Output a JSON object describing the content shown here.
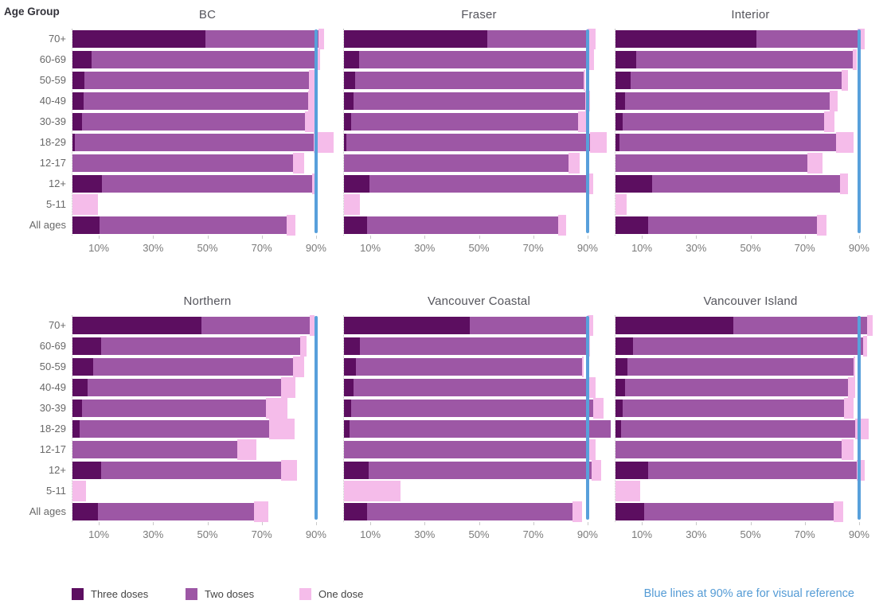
{
  "header": {
    "age_group_label": "Age Group"
  },
  "legend": {
    "items": [
      {
        "label": "Three doses",
        "key": "three"
      },
      {
        "label": "Two doses",
        "key": "two"
      },
      {
        "label": "One dose",
        "key": "one"
      }
    ]
  },
  "note": {
    "text": "Blue lines at 90% are for visual reference"
  },
  "colors": {
    "three": "#5c0e60",
    "two": "#9d57a5",
    "one": "#f5bcea",
    "reference_blue": "#58a0db",
    "note_blue": "#549bd5"
  },
  "chart_data": {
    "type": "bar",
    "subtype": "horizontal-stacked-small-multiples",
    "title": "",
    "xlabel": "",
    "ylabel": "Age Group",
    "xlim": [
      0,
      100
    ],
    "grid": false,
    "legend_position": "bottom-left",
    "reference_line_pct": 90,
    "series_names": [
      "Three doses",
      "Two doses",
      "One dose"
    ],
    "categories": [
      "70+",
      "60-69",
      "50-59",
      "40-49",
      "30-39",
      "18-29",
      "12-17",
      "12+",
      "5-11",
      "All ages"
    ],
    "x_tick_labels": [
      "10%",
      "30%",
      "50%",
      "70%",
      "90%"
    ],
    "x_tick_positions": [
      10,
      30,
      50,
      70,
      90
    ],
    "panels": [
      {
        "title": "BC",
        "values": [
          [
            49,
            42,
            2
          ],
          [
            7,
            83,
            1.5
          ],
          [
            4.5,
            83,
            3
          ],
          [
            4,
            83,
            3
          ],
          [
            3.5,
            82.5,
            3.5
          ],
          [
            1,
            88,
            7.5
          ],
          [
            0,
            81.5,
            4
          ],
          [
            11,
            77.5,
            2
          ],
          [
            0,
            0,
            9.5
          ],
          [
            10,
            69,
            3.5
          ]
        ]
      },
      {
        "title": "Fraser",
        "values": [
          [
            53,
            37,
            3
          ],
          [
            5.5,
            84,
            3
          ],
          [
            4,
            84.5,
            0.5
          ],
          [
            3.5,
            85.5,
            2
          ],
          [
            2.5,
            84,
            3
          ],
          [
            1,
            90,
            6
          ],
          [
            0,
            83,
            4
          ],
          [
            9.5,
            80,
            2.5
          ],
          [
            0,
            0,
            6
          ],
          [
            8.5,
            70.5,
            3
          ]
        ]
      },
      {
        "title": "Interior",
        "values": [
          [
            52,
            37.5,
            2.5
          ],
          [
            7.5,
            80,
            1.5
          ],
          [
            5.5,
            78,
            2.5
          ],
          [
            3.5,
            75.5,
            3
          ],
          [
            2.5,
            74.5,
            4
          ],
          [
            1.5,
            80,
            6.5
          ],
          [
            0,
            71,
            5.5
          ],
          [
            13.5,
            69.5,
            3
          ],
          [
            0,
            0,
            4
          ],
          [
            12,
            62.5,
            3.5
          ]
        ]
      },
      {
        "title": "Northern",
        "values": [
          [
            47.5,
            40,
            2
          ],
          [
            10.5,
            73.5,
            2.5
          ],
          [
            7.5,
            74,
            4
          ],
          [
            5.5,
            71.5,
            5.5
          ],
          [
            3.5,
            68,
            8
          ],
          [
            2.5,
            70,
            9.5
          ],
          [
            0,
            61,
            7
          ],
          [
            10.5,
            66.5,
            6
          ],
          [
            0,
            0,
            5
          ],
          [
            9.5,
            57.5,
            5.5
          ]
        ]
      },
      {
        "title": "Vancouver Coastal",
        "values": [
          [
            46.5,
            43.5,
            2
          ],
          [
            6,
            83.5,
            1.5
          ],
          [
            4.5,
            83.5,
            0.5
          ],
          [
            3.5,
            86.5,
            3
          ],
          [
            2.5,
            89.5,
            4
          ],
          [
            2,
            96.5,
            0
          ],
          [
            0,
            89.5,
            3.5
          ],
          [
            9,
            82.5,
            3.5
          ],
          [
            0,
            0,
            21
          ],
          [
            8.5,
            76,
            3.5
          ]
        ]
      },
      {
        "title": "Vancouver Island",
        "values": [
          [
            43.5,
            49.5,
            2
          ],
          [
            6.5,
            85,
            1.5
          ],
          [
            4.5,
            83.5,
            0.5
          ],
          [
            3.5,
            82.5,
            2.5
          ],
          [
            2.5,
            82,
            3.5
          ],
          [
            2,
            86.5,
            5
          ],
          [
            0,
            83.5,
            4.5
          ],
          [
            12,
            77,
            3
          ],
          [
            0,
            0,
            9
          ],
          [
            10.5,
            70,
            3.5
          ]
        ]
      }
    ]
  }
}
